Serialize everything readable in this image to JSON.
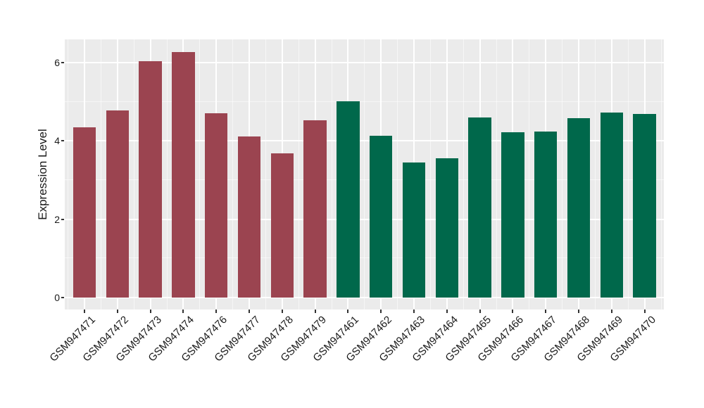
{
  "figure": {
    "background_color": "#FFFFFF",
    "panel_background_color": "#EBEBEB",
    "gridline_color": "#FFFFFF",
    "tick_mark_color": "#333333",
    "text_color": "#1A1A1A"
  },
  "chart_data": {
    "type": "bar",
    "title": "",
    "xlabel": "",
    "ylabel": "Expression Level",
    "categories": [
      "GSM947471",
      "GSM947472",
      "GSM947473",
      "GSM947474",
      "GSM947476",
      "GSM947477",
      "GSM947478",
      "GSM947479",
      "GSM947461",
      "GSM947462",
      "GSM947463",
      "GSM947464",
      "GSM947465",
      "GSM947466",
      "GSM947467",
      "GSM947468",
      "GSM947469",
      "GSM947470"
    ],
    "values": [
      4.35,
      4.78,
      6.04,
      6.27,
      4.7,
      4.12,
      3.68,
      4.52,
      5.02,
      4.14,
      3.45,
      3.56,
      4.6,
      4.22,
      4.25,
      4.58,
      4.73,
      4.69
    ],
    "groups": [
      "group1",
      "group1",
      "group1",
      "group1",
      "group1",
      "group1",
      "group1",
      "group1",
      "group2",
      "group2",
      "group2",
      "group2",
      "group2",
      "group2",
      "group2",
      "group2",
      "group2",
      "group2"
    ],
    "group_colors": {
      "group1": "#9B4450",
      "group2": "#00684B"
    },
    "yticks": [
      0,
      2,
      4,
      6
    ],
    "y_minor_gridlines": [
      1,
      3,
      5
    ],
    "ylim": [
      0,
      6.6
    ],
    "x_tick_rotation_deg": -45,
    "legend": "none",
    "grid": "on"
  }
}
